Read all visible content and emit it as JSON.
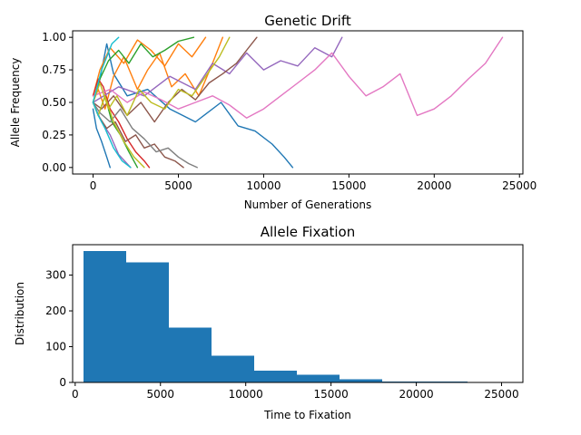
{
  "chart_data": [
    {
      "type": "line",
      "title": "Genetic Drift",
      "xlabel": "Number of Generations",
      "ylabel": "Allele Frequency",
      "xlim": [
        -1200,
        25200
      ],
      "ylim": [
        -0.05,
        1.05
      ],
      "xticks": [
        0,
        5000,
        10000,
        15000,
        20000,
        25000
      ],
      "xtick_labels": [
        "0",
        "5000",
        "10000",
        "15000",
        "20000",
        "25000"
      ],
      "yticks": [
        0,
        0.25,
        0.5,
        0.75,
        1
      ],
      "ytick_labels": [
        "0.00",
        "0.25",
        "0.50",
        "0.75",
        "1.00"
      ],
      "grid": false,
      "series": [
        {
          "color": "#1f77b4",
          "x": [
            0,
            400,
            800,
            1200,
            2000,
            3200,
            4500,
            6000,
            7500,
            8500,
            9500,
            10500,
            11200,
            11700
          ],
          "y": [
            0.5,
            0.68,
            0.95,
            0.72,
            0.55,
            0.6,
            0.45,
            0.35,
            0.5,
            0.32,
            0.28,
            0.18,
            0.08,
            0
          ]
        },
        {
          "color": "#1f77b4",
          "x": [
            0,
            200,
            500,
            800,
            1000
          ],
          "y": [
            0.45,
            0.3,
            0.2,
            0.08,
            0
          ]
        },
        {
          "color": "#ff7f0e",
          "x": [
            0,
            400,
            1000,
            1800,
            2600,
            3400,
            4200,
            5000,
            5800,
            6600
          ],
          "y": [
            0.55,
            0.75,
            0.92,
            0.8,
            0.98,
            0.9,
            0.78,
            0.95,
            0.85,
            1.0
          ]
        },
        {
          "color": "#ff7f0e",
          "x": [
            0,
            300,
            700,
            1200,
            1800,
            2600,
            3200,
            3900,
            4600,
            5400,
            6200,
            7000,
            7600
          ],
          "y": [
            0.5,
            0.6,
            0.45,
            0.7,
            0.85,
            0.6,
            0.75,
            0.88,
            0.62,
            0.72,
            0.55,
            0.8,
            1.0
          ]
        },
        {
          "color": "#2ca02c",
          "x": [
            0,
            400,
            900,
            1500,
            2100,
            2800,
            3500,
            4200,
            5000,
            5900
          ],
          "y": [
            0.5,
            0.68,
            0.82,
            0.9,
            0.8,
            0.95,
            0.85,
            0.9,
            0.97,
            1.0
          ]
        },
        {
          "color": "#2ca02c",
          "x": [
            0,
            300,
            700,
            1100,
            1600,
            2100,
            2600
          ],
          "y": [
            0.5,
            0.4,
            0.55,
            0.35,
            0.25,
            0.12,
            0
          ]
        },
        {
          "color": "#d62728",
          "x": [
            0,
            300,
            600,
            1000,
            1500,
            2000,
            2500,
            3000,
            3300
          ],
          "y": [
            0.55,
            0.68,
            0.62,
            0.45,
            0.35,
            0.22,
            0.12,
            0.05,
            0
          ]
        },
        {
          "color": "#9467bd",
          "x": [
            0,
            1500,
            3000,
            4500,
            6000,
            7000,
            8000,
            9000,
            10000,
            11000,
            12000,
            13000,
            14000,
            14600
          ],
          "y": [
            0.5,
            0.62,
            0.55,
            0.7,
            0.6,
            0.8,
            0.72,
            0.88,
            0.75,
            0.82,
            0.78,
            0.92,
            0.85,
            1.0
          ]
        },
        {
          "color": "#9467bd",
          "x": [
            0,
            500,
            1000,
            1500,
            2200
          ],
          "y": [
            0.5,
            0.35,
            0.25,
            0.1,
            0
          ]
        },
        {
          "color": "#8c564b",
          "x": [
            0,
            500,
            1200,
            2000,
            2800,
            3600,
            4400,
            5200,
            6000,
            6800,
            7600,
            8400,
            9000,
            9600
          ],
          "y": [
            0.5,
            0.45,
            0.55,
            0.4,
            0.5,
            0.35,
            0.5,
            0.6,
            0.52,
            0.65,
            0.72,
            0.8,
            0.9,
            1.0
          ]
        },
        {
          "color": "#8c564b",
          "x": [
            0,
            300,
            800,
            1300,
            1900,
            2500,
            3000,
            3600,
            4200,
            4800,
            5300
          ],
          "y": [
            0.5,
            0.4,
            0.3,
            0.35,
            0.2,
            0.25,
            0.15,
            0.18,
            0.08,
            0.05,
            0
          ]
        },
        {
          "color": "#e377c2",
          "x": [
            0,
            1000,
            2000,
            3000,
            4000,
            5000,
            6000,
            7000,
            8000,
            9000,
            10000,
            11000,
            12000,
            13000,
            14000,
            15000,
            16000,
            17000,
            18000,
            19000,
            20000,
            21000,
            22000,
            23000,
            24000
          ],
          "y": [
            0.55,
            0.6,
            0.5,
            0.58,
            0.52,
            0.45,
            0.5,
            0.55,
            0.48,
            0.38,
            0.45,
            0.55,
            0.65,
            0.75,
            0.88,
            0.7,
            0.55,
            0.62,
            0.72,
            0.4,
            0.45,
            0.55,
            0.68,
            0.8,
            1.0
          ]
        },
        {
          "color": "#7f7f7f",
          "x": [
            0,
            400,
            1000,
            1600,
            2300,
            3000,
            3700,
            4400,
            5000,
            5600,
            6100
          ],
          "y": [
            0.5,
            0.42,
            0.35,
            0.45,
            0.3,
            0.22,
            0.12,
            0.15,
            0.08,
            0.03,
            0
          ]
        },
        {
          "color": "#bcbd22",
          "x": [
            0,
            400,
            900,
            1400,
            2000,
            2700,
            3400,
            4200,
            5000,
            5800,
            6600,
            7400,
            8000
          ],
          "y": [
            0.5,
            0.65,
            0.45,
            0.55,
            0.4,
            0.6,
            0.5,
            0.45,
            0.6,
            0.55,
            0.7,
            0.85,
            1.0
          ]
        },
        {
          "color": "#bcbd22",
          "x": [
            0,
            300,
            700,
            1200,
            1800,
            2400,
            3000
          ],
          "y": [
            0.5,
            0.4,
            0.55,
            0.35,
            0.2,
            0.08,
            0
          ]
        },
        {
          "color": "#17becf",
          "x": [
            0,
            200,
            500,
            800,
            1100,
            1500
          ],
          "y": [
            0.5,
            0.6,
            0.75,
            0.85,
            0.95,
            1.0
          ]
        },
        {
          "color": "#17becf",
          "x": [
            0,
            300,
            700,
            1200,
            1700,
            2200
          ],
          "y": [
            0.5,
            0.4,
            0.3,
            0.15,
            0.05,
            0
          ]
        }
      ]
    },
    {
      "type": "bar",
      "title": "Allele Fixation",
      "xlabel": "Time to Fixation",
      "ylabel": "Distribution",
      "xlim": [
        -150,
        26250
      ],
      "ylim": [
        0,
        385
      ],
      "xticks": [
        0,
        5000,
        10000,
        15000,
        20000,
        25000
      ],
      "xtick_labels": [
        "0",
        "5000",
        "10000",
        "15000",
        "20000",
        "25000"
      ],
      "yticks": [
        0,
        100,
        200,
        300
      ],
      "ytick_labels": [
        "0",
        "100",
        "200",
        "300"
      ],
      "grid": false,
      "color": "#1f77b4",
      "bin_edges": [
        500,
        3000,
        5500,
        8000,
        10500,
        13000,
        15500,
        18000,
        20500,
        23000,
        25500
      ],
      "values": [
        367,
        335,
        153,
        75,
        33,
        21,
        9,
        3,
        2,
        1
      ]
    }
  ]
}
